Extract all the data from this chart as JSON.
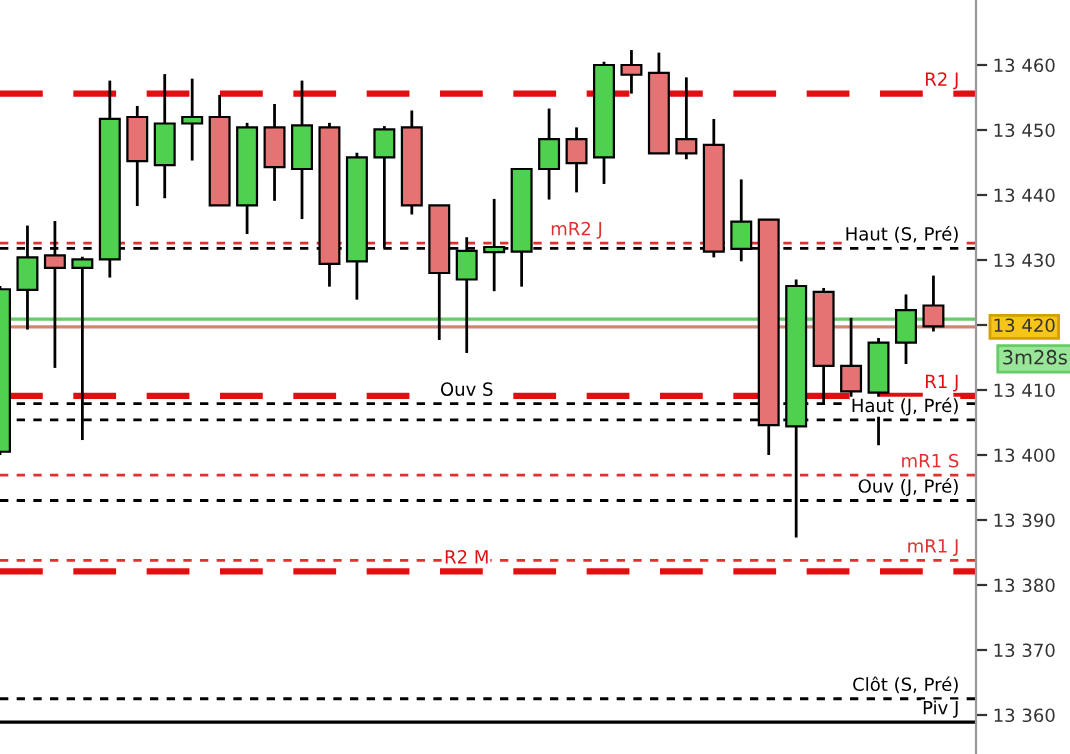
{
  "chart_data": {
    "type": "candlestick",
    "categories": [
      null,
      null,
      null,
      null,
      null,
      null,
      null,
      null,
      null,
      null,
      null,
      null,
      null,
      null,
      null,
      null,
      null,
      null,
      null,
      null,
      null,
      null,
      null,
      null,
      null,
      null,
      null,
      null,
      null,
      null,
      null,
      null,
      null,
      null,
      null
    ],
    "ohlc": [
      [
        13400.5,
        13426,
        13400,
        13425.5
      ],
      [
        13425.4,
        13435.3,
        13419.3,
        13430.4
      ],
      [
        13430.7,
        13436,
        13413.4,
        13428.8
      ],
      [
        13428.8,
        13430.5,
        13402.3,
        13430.1
      ],
      [
        13430.1,
        13457.6,
        13427.3,
        13451.7
      ],
      [
        13452,
        13453.7,
        13438.3,
        13445.2
      ],
      [
        13444.6,
        13458.6,
        13439.5,
        13451
      ],
      [
        13451,
        13457.9,
        13445.3,
        13452
      ],
      [
        13452,
        13455.4,
        13438.4,
        13438.4
      ],
      [
        13438.4,
        13451.1,
        13434,
        13450.4
      ],
      [
        13450.4,
        13454,
        13439.1,
        13444.3
      ],
      [
        13444,
        13457.6,
        13436.3,
        13450.7
      ],
      [
        13450.4,
        13451.1,
        13425.9,
        13429.4
      ],
      [
        13429.8,
        13446.5,
        13423.9,
        13445.8
      ],
      [
        13445.8,
        13450.6,
        13431.9,
        13450.1
      ],
      [
        13450.4,
        13453,
        13437,
        13438.4
      ],
      [
        13438.4,
        13438.4,
        13417.7,
        13428
      ],
      [
        13427,
        13433.5,
        13415.7,
        13431.4
      ],
      [
        13431.2,
        13439.4,
        13425.2,
        13432
      ],
      [
        13431.3,
        13444,
        13425.9,
        13444
      ],
      [
        13444,
        13453.3,
        13439.3,
        13448.6
      ],
      [
        13448.6,
        13450.4,
        13440.4,
        13444.9
      ],
      [
        13445.8,
        13460.5,
        13441.7,
        13460
      ],
      [
        13460,
        13462.3,
        13455.6,
        13458.5
      ],
      [
        13458.8,
        13461.9,
        13446.4,
        13446.4
      ],
      [
        13448.6,
        13458.1,
        13445.5,
        13446.4
      ],
      [
        13447.7,
        13451.7,
        13430.4,
        13431.3
      ],
      [
        13431.7,
        13442.4,
        13429.8,
        13435.9
      ],
      [
        13436.2,
        13436.2,
        13400,
        13404.6
      ],
      [
        13404.4,
        13427,
        13387.3,
        13426
      ],
      [
        13425.1,
        13425.7,
        13408,
        13413.7
      ],
      [
        13413.7,
        13421.1,
        13408.5,
        13409.8
      ],
      [
        13409.6,
        13418,
        13401.5,
        13417.3
      ],
      [
        13417.3,
        13424.7,
        13414,
        13422.3
      ],
      [
        13423,
        13427.6,
        13419,
        13419.8
      ]
    ],
    "colors": [
      "#4fd14f",
      "#4fd14f",
      "#e57373",
      "#4fd14f",
      "#4fd14f",
      "#e57373",
      "#4fd14f",
      "#4fd14f",
      "#e57373",
      "#4fd14f",
      "#e57373",
      "#4fd14f",
      "#e57373",
      "#4fd14f",
      "#4fd14f",
      "#e57373",
      "#e57373",
      "#4fd14f",
      "#4fd14f",
      "#4fd14f",
      "#4fd14f",
      "#e57373",
      "#4fd14f",
      "#e57373",
      "#e57373",
      "#e57373",
      "#e57373",
      "#4fd14f",
      "#e57373",
      "#4fd14f",
      "#e57373",
      "#e57373",
      "#4fd14f",
      "#4fd14f",
      "#e57373"
    ],
    "ylim": [
      13354,
      13470
    ],
    "yticks": [
      {
        "value": 13360,
        "label": "13 360"
      },
      {
        "value": 13370,
        "label": "13 370"
      },
      {
        "value": 13380,
        "label": "13 380"
      },
      {
        "value": 13390,
        "label": "13 390"
      },
      {
        "value": 13400,
        "label": "13 400"
      },
      {
        "value": 13410,
        "label": "13 410"
      },
      {
        "value": 13420,
        "label": "13 420"
      },
      {
        "value": 13430,
        "label": "13 430"
      },
      {
        "value": 13440,
        "label": "13 440"
      },
      {
        "value": 13450,
        "label": "13 450"
      },
      {
        "value": 13460,
        "label": "13 460"
      }
    ],
    "tick_labels": "y",
    "grid": false,
    "ref_lines": [
      {
        "axis": "y",
        "value": 13455.6,
        "label": "R2 J",
        "color": "#e01010",
        "line_style": "dashed"
      },
      {
        "axis": "y",
        "value": 13431.8,
        "label": "Haut (S, Pré)",
        "color": "#000000",
        "line_style": "dotted"
      },
      {
        "axis": "y",
        "value": 13432.6,
        "label": "mR2 J",
        "color": "#e03030",
        "line_style": "dotted"
      },
      {
        "axis": "y",
        "value": 13420.9,
        "color": "#66cc66",
        "line_style": "solid"
      },
      {
        "axis": "y",
        "value": 13419.7,
        "color": "#cc8877",
        "line_style": "solid"
      },
      {
        "axis": "y",
        "value": 13409.1,
        "label": "R1 J",
        "color": "#e01010",
        "line_style": "dashed"
      },
      {
        "axis": "y",
        "value": 13407.9,
        "label": "Ouv S",
        "color": "#000000",
        "line_style": "dotted"
      },
      {
        "axis": "y",
        "value": 13405.4,
        "label": "Haut (J, Pré)",
        "color": "#000000",
        "line_style": "dotted"
      },
      {
        "axis": "y",
        "value": 13396.9,
        "label": "mR1 S",
        "color": "#e03030",
        "line_style": "dotted"
      },
      {
        "axis": "y",
        "value": 13393,
        "label": "Ouv (J, Pré)",
        "color": "#000000",
        "line_style": "dotted"
      },
      {
        "axis": "y",
        "value": 13383.8,
        "label": "mR1 J",
        "color": "#e03030",
        "line_style": "dotted"
      },
      {
        "axis": "y",
        "value": 13382.1,
        "label": "R2 M",
        "color": "#e01010",
        "line_style": "dashed"
      },
      {
        "axis": "y",
        "value": 13362.5,
        "label": "Clôt (S, Pré)",
        "color": "#000000",
        "line_style": "dotted"
      },
      {
        "axis": "y",
        "value": 13358.9,
        "label": "Piv J",
        "color": "#000000",
        "line_style": "solid"
      }
    ],
    "annotations": [
      "3m28s"
    ]
  }
}
